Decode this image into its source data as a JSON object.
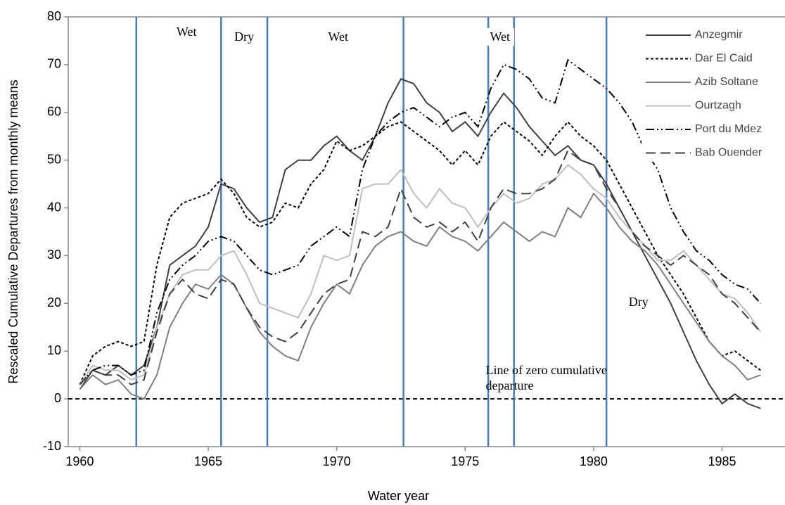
{
  "chart_data": {
    "type": "line",
    "x_label": "Water year",
    "y_label": "Rescaled Cumulative Departures from monthly means",
    "x": [
      1960,
      1960.5,
      1961,
      1961.5,
      1962,
      1962.5,
      1963,
      1963.5,
      1964,
      1964.5,
      1965,
      1965.5,
      1966,
      1966.5,
      1967,
      1967.5,
      1968,
      1968.5,
      1969,
      1969.5,
      1970,
      1970.5,
      1971,
      1971.5,
      1972,
      1972.5,
      1973,
      1973.5,
      1974,
      1974.5,
      1975,
      1975.5,
      1976,
      1976.5,
      1977,
      1977.5,
      1978,
      1978.5,
      1979,
      1979.5,
      1980,
      1980.5,
      1981,
      1981.5,
      1982,
      1982.5,
      1983,
      1983.5,
      1984,
      1984.5,
      1985,
      1985.5,
      1986,
      1986.5
    ],
    "series": [
      {
        "name": "Anzegmir",
        "color": "#404040",
        "linestyle": "solid",
        "values": [
          2,
          6,
          5,
          7,
          5,
          7,
          15,
          28,
          30,
          32,
          36,
          45,
          44,
          40,
          37,
          38,
          48,
          50,
          50,
          53,
          55,
          52,
          50,
          55,
          62,
          67,
          66,
          62,
          60,
          56,
          58,
          55,
          60,
          64,
          61,
          57,
          54,
          51,
          53,
          50,
          49,
          45,
          40,
          35,
          30,
          25,
          20,
          14,
          8,
          3,
          -1,
          1,
          -1,
          -2
        ]
      },
      {
        "name": "Dar El Caid",
        "color": "#000000",
        "linestyle": "dotted",
        "values": [
          3,
          9,
          11,
          12,
          11,
          12,
          28,
          38,
          41,
          42,
          43,
          46,
          43,
          38,
          36,
          37,
          41,
          40,
          45,
          48,
          54,
          52,
          53,
          55,
          57,
          58,
          56,
          54,
          52,
          49,
          52,
          49,
          55,
          58,
          56,
          54,
          51,
          55,
          58,
          55,
          53,
          50,
          45,
          40,
          35,
          30,
          26,
          22,
          17,
          12,
          9,
          10,
          8,
          6
        ]
      },
      {
        "name": "Azib Soltane",
        "color": "#7f7f7f",
        "linestyle": "solid",
        "values": [
          2,
          5,
          3,
          4,
          1,
          0,
          5,
          15,
          20,
          24,
          23,
          26,
          24,
          19,
          14,
          11,
          9,
          8,
          15,
          20,
          24,
          22,
          28,
          32,
          34,
          35,
          33,
          32,
          36,
          34,
          33,
          31,
          34,
          37,
          35,
          33,
          35,
          34,
          40,
          38,
          43,
          40,
          36,
          33,
          31,
          28,
          24,
          20,
          16,
          12,
          9,
          7,
          4,
          5
        ]
      },
      {
        "name": "Ourtzagh",
        "color": "#bfbfbf",
        "linestyle": "solid",
        "values": [
          3,
          7,
          6,
          6,
          4,
          5,
          15,
          22,
          26,
          27,
          27,
          30,
          31,
          26,
          20,
          19,
          18,
          17,
          22,
          30,
          29,
          30,
          44,
          45,
          45,
          48,
          43,
          40,
          44,
          41,
          40,
          36,
          40,
          43,
          41,
          42,
          45,
          46,
          49,
          47,
          44,
          42,
          38,
          35,
          32,
          29,
          29,
          31,
          28,
          25,
          22,
          21,
          18,
          14
        ]
      },
      {
        "name": "Port du Mdez",
        "color": "#000000",
        "linestyle": "dashdotdot",
        "values": [
          3,
          6,
          7,
          7,
          5,
          6,
          18,
          25,
          28,
          30,
          33,
          34,
          33,
          30,
          27,
          26,
          27,
          28,
          32,
          34,
          36,
          34,
          48,
          55,
          58,
          60,
          61,
          59,
          57,
          59,
          60,
          57,
          65,
          70,
          69,
          67,
          63,
          62,
          71,
          69,
          67,
          65,
          62,
          58,
          52,
          48,
          40,
          35,
          31,
          29,
          26,
          24,
          23,
          20
        ]
      },
      {
        "name": "Bab Ouender",
        "color": "#404040",
        "linestyle": "dashed",
        "values": [
          3,
          6,
          5,
          5,
          3,
          4,
          14,
          22,
          25,
          22,
          21,
          25,
          24,
          19,
          15,
          13,
          12,
          14,
          18,
          22,
          24,
          25,
          35,
          34,
          36,
          44,
          38,
          36,
          37,
          35,
          37,
          33,
          40,
          44,
          43,
          43,
          44,
          46,
          52,
          50,
          49,
          44,
          40,
          35,
          32,
          30,
          28,
          30,
          28,
          26,
          22,
          20,
          17,
          14
        ]
      }
    ],
    "xlim": [
      1959.55,
      1987.45
    ],
    "ylim": [
      -10,
      80
    ],
    "xticks": [
      1960,
      1965,
      1970,
      1975,
      1980,
      1985
    ],
    "yticks": [
      -10,
      0,
      10,
      20,
      30,
      40,
      50,
      60,
      70,
      80
    ],
    "legend": "upper right",
    "vlines": [
      1962.2,
      1965.5,
      1967.3,
      1972.6,
      1975.9,
      1976.9,
      1980.5
    ],
    "vline_color": "#4a7ebb",
    "hline": 0,
    "annotations": [
      {
        "text": "Wet",
        "x": 1963.6,
        "y": 77
      },
      {
        "text": "Dry",
        "x": 1965.85,
        "y": 76
      },
      {
        "text": "Wet",
        "x": 1969.5,
        "y": 76
      },
      {
        "text": "Wet",
        "x": 1975.8,
        "y": 76
      },
      {
        "text": "Dry",
        "x": 1981.2,
        "y": 20.5
      },
      {
        "text": "Line of zero cumulative departure",
        "x": 1975.8,
        "y": 6
      }
    ]
  }
}
